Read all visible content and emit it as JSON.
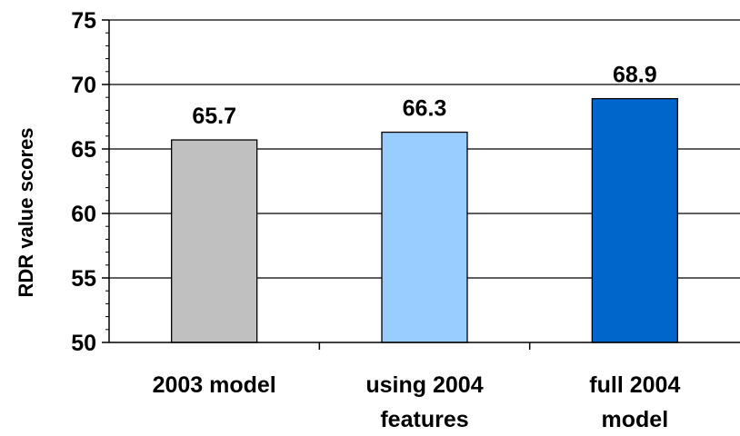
{
  "chart_data": {
    "type": "bar",
    "categories": [
      [
        "2003 model"
      ],
      [
        "using 2004",
        "features"
      ],
      [
        "full 2004",
        "model"
      ]
    ],
    "values": [
      65.7,
      66.3,
      68.9
    ],
    "value_labels": [
      "65.7",
      "66.3",
      "68.9"
    ],
    "colors": [
      "#c0c0c0",
      "#99ccff",
      "#0066cc"
    ],
    "ylabel": "RDR value scores",
    "xlabel": "",
    "ylim": [
      50,
      75
    ],
    "yticks": [
      50,
      55,
      60,
      65,
      70,
      75
    ],
    "grid": true
  }
}
